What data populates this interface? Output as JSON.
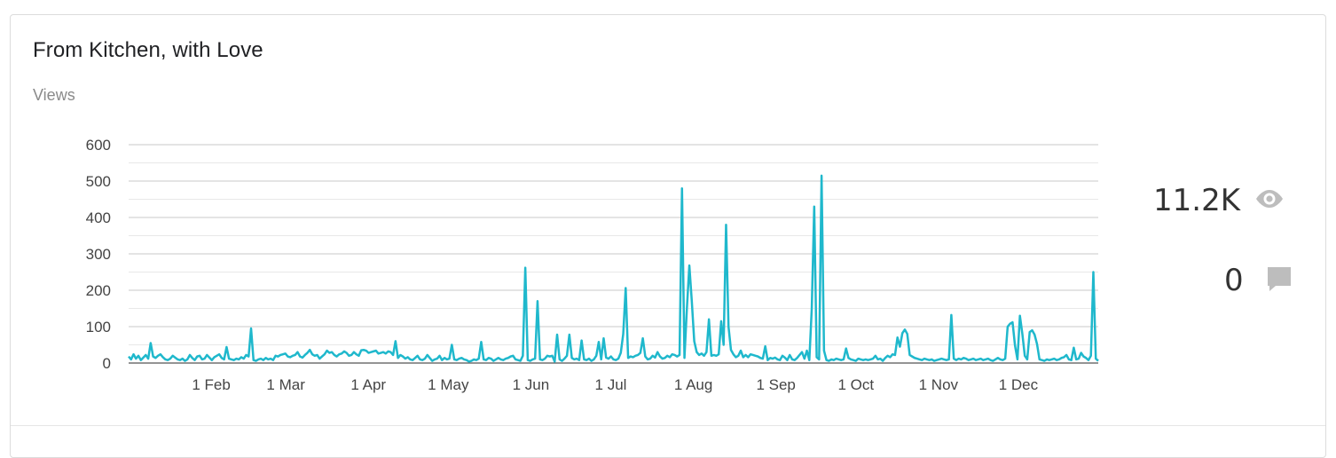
{
  "card": {
    "title": "From Kitchen, with Love",
    "subtitle": "Views"
  },
  "stats": {
    "views": "11.2K",
    "views_icon": "eye-icon",
    "comments": "0",
    "comments_icon": "comment-icon"
  },
  "colors": {
    "line": "#1fb8cc",
    "grid": "#c9c9c9",
    "icon": "#bdbdbd"
  },
  "chart_data": {
    "type": "line",
    "title": "",
    "xlabel": "",
    "ylabel": "",
    "ylim": [
      0,
      600
    ],
    "yticks": [
      0,
      100,
      200,
      300,
      400,
      500,
      600
    ],
    "xticks": [
      "1 Feb",
      "1 Mar",
      "1 Apr",
      "1 May",
      "1 Jun",
      "1 Jul",
      "1 Aug",
      "1 Sep",
      "1 Oct",
      "1 Nov",
      "1 Dec"
    ],
    "x_start": "2023-01-01",
    "x_end": "2023-12-31",
    "grid": true,
    "legend": "none",
    "series": [
      {
        "values": [
          18,
          10,
          24,
          12,
          20,
          8,
          15,
          22,
          12,
          55,
          18,
          14,
          20,
          24,
          16,
          10,
          8,
          12,
          20,
          15,
          10,
          8,
          12,
          6,
          10,
          22,
          14,
          8,
          18,
          20,
          10,
          12,
          22,
          15,
          8,
          16,
          20,
          24,
          14,
          10,
          44,
          12,
          10,
          8,
          12,
          10,
          16,
          12,
          22,
          18,
          95,
          8,
          6,
          10,
          12,
          8,
          14,
          10,
          12,
          8,
          20,
          18,
          22,
          24,
          26,
          18,
          16,
          20,
          22,
          30,
          18,
          15,
          22,
          28,
          36,
          24,
          20,
          22,
          12,
          18,
          24,
          34,
          28,
          30,
          22,
          18,
          24,
          26,
          32,
          28,
          20,
          22,
          30,
          24,
          20,
          35,
          36,
          34,
          28,
          30,
          32,
          34,
          26,
          28,
          30,
          26,
          32,
          30,
          22,
          60,
          14,
          22,
          18,
          12,
          16,
          10,
          8,
          14,
          20,
          10,
          8,
          12,
          22,
          14,
          6,
          10,
          12,
          20,
          8,
          14,
          10,
          12,
          50,
          10,
          8,
          12,
          14,
          10,
          8,
          4,
          6,
          10,
          8,
          12,
          58,
          10,
          8,
          14,
          12,
          6,
          10,
          14,
          10,
          8,
          12,
          14,
          18,
          20,
          10,
          8,
          6,
          20,
          262,
          8,
          6,
          10,
          12,
          170,
          10,
          8,
          12,
          20,
          18,
          20,
          4,
          78,
          10,
          6,
          12,
          20,
          78,
          14,
          10,
          12,
          8,
          62,
          10,
          8,
          12,
          6,
          10,
          20,
          58,
          10,
          68,
          15,
          12,
          18,
          10,
          8,
          12,
          28,
          80,
          206,
          14,
          18,
          16,
          20,
          22,
          28,
          68,
          18,
          10,
          12,
          20,
          15,
          30,
          18,
          12,
          14,
          20,
          16,
          24,
          22,
          18,
          22,
          480,
          14,
          150,
          268,
          170,
          60,
          30,
          22,
          26,
          20,
          30,
          120,
          20,
          22,
          20,
          24,
          115,
          50,
          380,
          100,
          36,
          24,
          16,
          20,
          34,
          16,
          22,
          16,
          24,
          22,
          20,
          18,
          14,
          12,
          46,
          8,
          14,
          12,
          15,
          10,
          8,
          20,
          15,
          8,
          22,
          10,
          8,
          14,
          22,
          30,
          12,
          34,
          8,
          150,
          430,
          16,
          10,
          515,
          34,
          8,
          6,
          10,
          8,
          12,
          10,
          8,
          10,
          40,
          14,
          10,
          8,
          6,
          12,
          10,
          8,
          10,
          8,
          10,
          12,
          20,
          10,
          12,
          6,
          14,
          20,
          16,
          24,
          22,
          70,
          45,
          82,
          92,
          80,
          22,
          18,
          14,
          12,
          10,
          8,
          12,
          10,
          8,
          10,
          6,
          8,
          10,
          12,
          10,
          8,
          10,
          132,
          12,
          8,
          12,
          10,
          14,
          12,
          8,
          10,
          12,
          8,
          10,
          12,
          8,
          10,
          12,
          8,
          6,
          10,
          14,
          10,
          8,
          12,
          100,
          108,
          112,
          48,
          10,
          130,
          80,
          20,
          10,
          85,
          90,
          78,
          52,
          10,
          8,
          6,
          10,
          8,
          10,
          12,
          8,
          10,
          14,
          16,
          22,
          10,
          8,
          42,
          10,
          12,
          28,
          18,
          14,
          8,
          20,
          250,
          12,
          6
        ]
      }
    ]
  }
}
